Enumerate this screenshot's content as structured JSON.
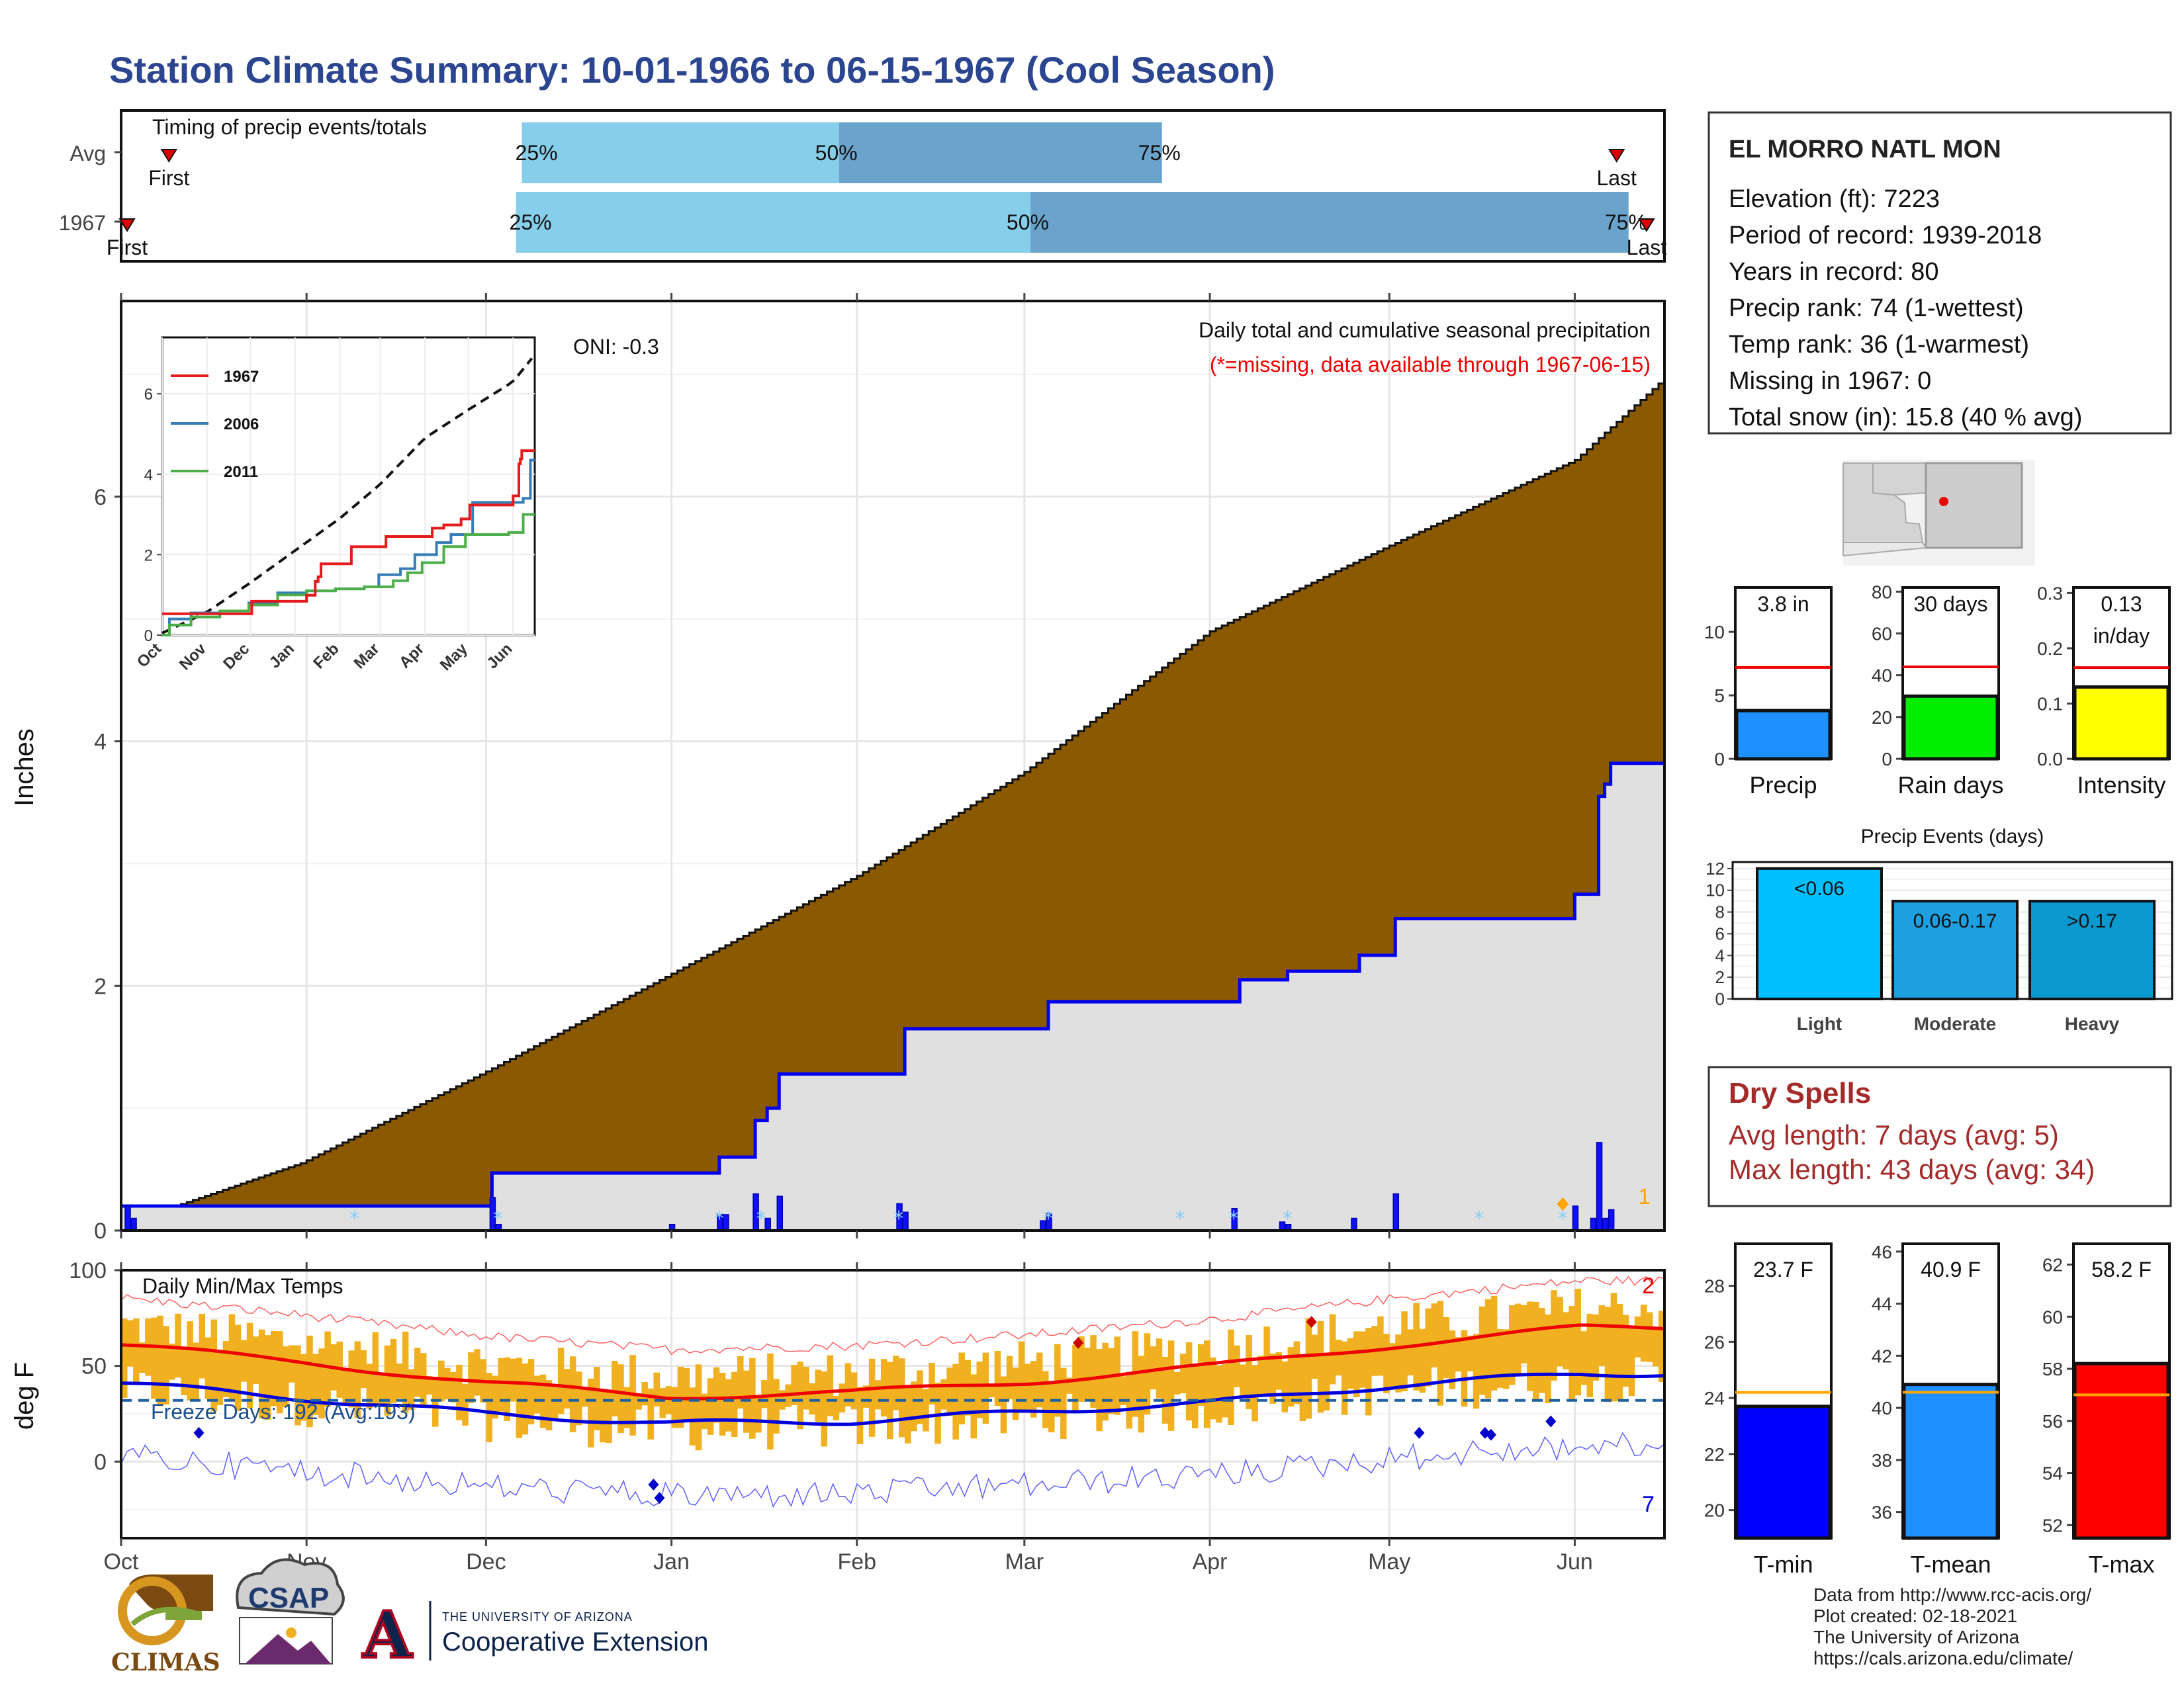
{
  "title": "Station Climate Summary: 10-01-1966 to 06-15-1967 (Cool Season)",
  "timing": {
    "heading": "Timing of precip events/totals",
    "rows": [
      {
        "label": "Avg",
        "first_label": "First",
        "last_label": "Last",
        "p25": "25%",
        "p50": "50%",
        "p75": "75%",
        "first_day": 8,
        "q25_day": 67,
        "q50_day": 120,
        "q75_day": 174,
        "last_day": 250
      },
      {
        "label": "1967",
        "first_label": "First",
        "last_label": "Last",
        "p25": "25%",
        "p50": "50%",
        "p75": "75%",
        "first_day": 1,
        "q25_day": 66,
        "q50_day": 152,
        "q75_day": 252,
        "last_day": 255
      }
    ],
    "colors": {
      "light": "#87ceeb",
      "dark": "#6aa4cc"
    }
  },
  "precip_panel": {
    "ylabel": "Inches",
    "yticks": [
      0,
      2,
      4,
      6
    ],
    "ylim": [
      0,
      7.6
    ],
    "caption": "Daily total and cumulative seasonal precipitation",
    "missing_note": "(*=missing, data available through 1967-06-15)",
    "oni": "ONI: -0.3",
    "count_label": "1",
    "colors": {
      "avg_fill": "#8b5a00",
      "obs_fill": "#e0e0e0",
      "obs_line": "#0000ee",
      "bars": "#1010ff",
      "missing": "#87cefa"
    }
  },
  "inset": {
    "yticks": [
      "0",
      "2",
      "4",
      "6"
    ],
    "months": [
      "Oct",
      "Nov",
      "Dec",
      "Jan",
      "Feb",
      "Mar",
      "Apr",
      "May",
      "Jun"
    ],
    "legend": [
      {
        "name": "1967",
        "color": "#e41a1c"
      },
      {
        "name": "2006",
        "color": "#377eb8"
      },
      {
        "name": "2011",
        "color": "#4daf4a"
      }
    ]
  },
  "temp_panel": {
    "ylabel": "deg F",
    "yticks": [
      0,
      50,
      100
    ],
    "ylim": [
      -40,
      100
    ],
    "heading": "Daily Min/Max Temps",
    "freeze_label": "Freeze Days: 192 (Avg:193)",
    "max_count": "2",
    "min_count": "7",
    "freeze_line": 32,
    "colors": {
      "bars": "#f0b020",
      "max": "#ee0000",
      "min": "#0000dd",
      "freeze": "#2060a0"
    }
  },
  "x_months": [
    "Oct",
    "Nov",
    "Dec",
    "Jan",
    "Feb",
    "Mar",
    "Apr",
    "May",
    "Jun"
  ],
  "station": {
    "name": "EL MORRO NATL MON",
    "lines": [
      "Elevation (ft): 7223",
      "Period of record: 1939-2018",
      "Years in record: 80",
      "Precip rank: 74 (1-wettest)",
      "Temp rank: 36 (1-warmest)",
      "Missing in 1967: 0",
      "Total snow (in): 15.8 (40 % avg)"
    ]
  },
  "mini_bars": [
    {
      "title": "3.8 in",
      "title2": "",
      "label": "Precip",
      "value": 3.8,
      "avg": 7.2,
      "ymax": 13.5,
      "ticks": [
        "0",
        "5",
        "10"
      ],
      "tickvals": [
        0,
        5,
        10
      ],
      "color": "#1e90ff"
    },
    {
      "title": "30 days",
      "title2": "",
      "label": "Rain days",
      "value": 30,
      "avg": 44,
      "ymax": 82,
      "ticks": [
        "0",
        "20",
        "40",
        "60",
        "80"
      ],
      "tickvals": [
        0,
        20,
        40,
        60,
        80
      ],
      "color": "#00ee00"
    },
    {
      "title": "0.13",
      "title2": "in/day",
      "label": "Intensity",
      "value": 0.13,
      "avg": 0.165,
      "ymax": 0.31,
      "ticks": [
        "0.0",
        "0.1",
        "0.2",
        "0.3"
      ],
      "tickvals": [
        0,
        0.1,
        0.2,
        0.3
      ],
      "color": "#ffff00"
    }
  ],
  "events": {
    "title": "Precip Events (days)",
    "ticks": [
      "0",
      "2",
      "4",
      "6",
      "8",
      "10",
      "12"
    ],
    "tickvals": [
      0,
      2,
      4,
      6,
      8,
      10,
      12
    ],
    "bars": [
      {
        "cat": "Light",
        "label": "<0.06",
        "value": 12,
        "color": "#00bfff"
      },
      {
        "cat": "Moderate",
        "label": "0.06-0.17",
        "value": 9,
        "color": "#1ea0e0"
      },
      {
        "cat": "Heavy",
        "label": ">0.17",
        "value": 9,
        "color": "#0b98cf"
      }
    ]
  },
  "dry_spells": {
    "title": "Dry Spells",
    "avg_line": "Avg length: 7 days (avg: 5)",
    "max_line": "Max length: 43 days (avg: 34)"
  },
  "temp_bars": [
    {
      "title": "23.7 F",
      "label": "T-min",
      "value": 23.7,
      "avg": 24.2,
      "ymin": 19,
      "ymax": 29.5,
      "ticks": [
        "20",
        "22",
        "24",
        "26",
        "28"
      ],
      "tickvals": [
        20,
        22,
        24,
        26,
        28
      ],
      "color": "#0000ff"
    },
    {
      "title": "40.9 F",
      "label": "T-mean",
      "value": 40.9,
      "avg": 40.6,
      "ymin": 35,
      "ymax": 46.3,
      "ticks": [
        "36",
        "38",
        "40",
        "42",
        "44",
        "46"
      ],
      "tickvals": [
        36,
        38,
        40,
        42,
        44,
        46
      ],
      "color": "#1e90ff"
    },
    {
      "title": "58.2 F",
      "label": "T-max",
      "value": 58.2,
      "avg": 57,
      "ymin": 51.5,
      "ymax": 62.8,
      "ticks": [
        "52",
        "54",
        "56",
        "58",
        "60",
        "62"
      ],
      "tickvals": [
        52,
        54,
        56,
        58,
        60,
        62
      ],
      "color": "#ff0000"
    }
  ],
  "footer": {
    "lines": [
      "Data from http://www.rcc-acis.org/",
      "Plot created: 02-18-2021",
      "The University of Arizona",
      "https://cals.arizona.edu/climate/"
    ],
    "logo_climas": "CLIMAS",
    "logo_csap": "CSAP",
    "logo_ua_small": "THE UNIVERSITY OF ARIZONA",
    "logo_ua_big": "Cooperative Extension",
    "logo_ua_letter": "A"
  },
  "chart_data": {
    "type": "area",
    "title": "Station Climate Summary: 10-01-1966 to 06-15-1967 (Cool Season)",
    "ylabel": "Inches",
    "ylim": [
      0,
      7.6
    ],
    "x": [
      "10-01",
      "11-01",
      "11-07",
      "12-01",
      "12-07",
      "12-10",
      "12-31",
      "01-31",
      "02-28",
      "03-03",
      "03-10",
      "03-15",
      "04-01",
      "05-31",
      "06-01",
      "06-03",
      "06-05",
      "06-15"
    ],
    "series": [
      {
        "name": "1967",
        "values": [
          0.2,
          0.2,
          0.47,
          0.47,
          0.9,
          1.28,
          1.65,
          1.87,
          1.87,
          2.05,
          2.12,
          2.25,
          2.55,
          2.55,
          2.75,
          3.55,
          3.82,
          3.82
        ]
      }
    ],
    "avg_cumulative": {
      "x": [
        "10-01",
        "12-01",
        "02-01",
        "04-01",
        "06-01",
        "06-15"
      ],
      "values": [
        0.05,
        1.65,
        3.3,
        5.3,
        6.85,
        7.0
      ]
    },
    "temperature": {
      "months": [
        "Oct",
        "Nov",
        "Dec",
        "Jan",
        "Feb",
        "Mar",
        "Apr",
        "May",
        "Jun"
      ],
      "avg_max": [
        71,
        62,
        51,
        44,
        46,
        52,
        60,
        71,
        80
      ],
      "avg_min": [
        38,
        30,
        22,
        17,
        18,
        23,
        28,
        37,
        43
      ]
    }
  }
}
